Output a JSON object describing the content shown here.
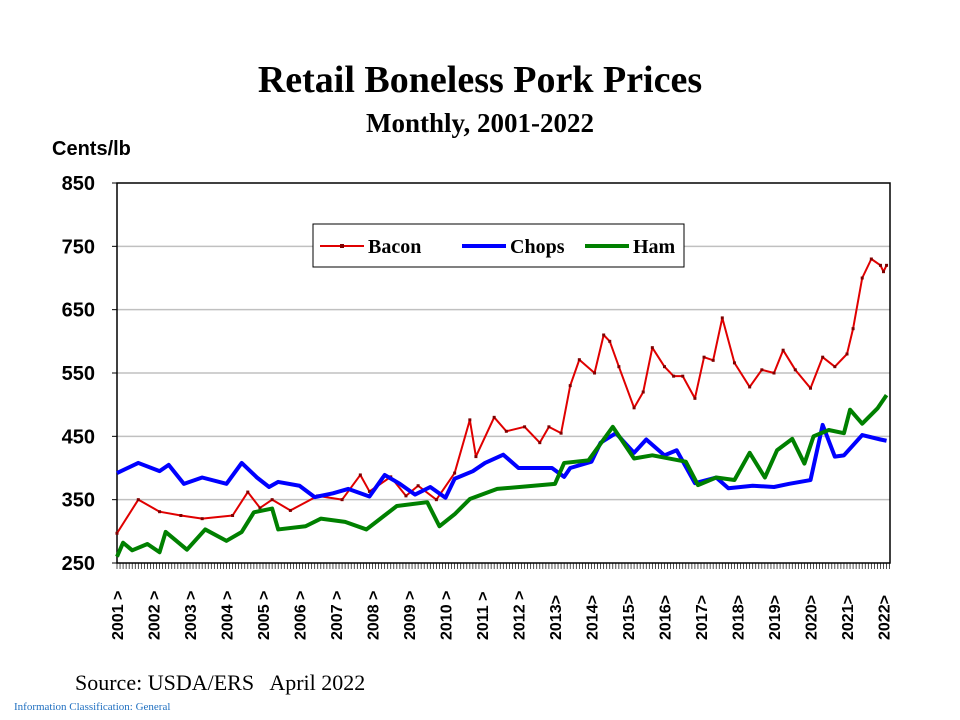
{
  "chart_data": {
    "type": "line",
    "title": "Retail Boneless Pork Prices",
    "subtitle": "Monthly, 2001-2022",
    "ylabel": "Cents/lb",
    "ylim": [
      250,
      850
    ],
    "yticks": [
      250,
      350,
      450,
      550,
      650,
      750,
      850
    ],
    "xlim": [
      "2001-01",
      "2022-03"
    ],
    "xtick_labels": [
      "2001 >",
      "2002 >",
      "2003 >",
      "2004 >",
      "2005 >",
      "2006 >",
      "2007 >",
      "2008 >",
      "2009 >",
      "2010 >",
      "2011 >",
      "2012 >",
      "2013>",
      "2014>",
      "2015>",
      "2016>",
      "2017>",
      "2018>",
      "2019>",
      "2020>",
      "2021>",
      "2022>"
    ],
    "grid": "horizontal",
    "legend_placement": "top-center",
    "series": [
      {
        "name": "Bacon",
        "color": "#e00000",
        "marker_color": "#800000",
        "points": [
          [
            "2001-01",
            297
          ],
          [
            "2001-08",
            350
          ],
          [
            "2002-03",
            331
          ],
          [
            "2002-10",
            325
          ],
          [
            "2003-05",
            320
          ],
          [
            "2004-03",
            325
          ],
          [
            "2004-08",
            362
          ],
          [
            "2004-12",
            337
          ],
          [
            "2005-04",
            350
          ],
          [
            "2005-10",
            333
          ],
          [
            "2006-07",
            356
          ],
          [
            "2007-03",
            350
          ],
          [
            "2007-09",
            389
          ],
          [
            "2007-12",
            363
          ],
          [
            "2008-07",
            386
          ],
          [
            "2008-12",
            356
          ],
          [
            "2009-04",
            372
          ],
          [
            "2009-10",
            350
          ],
          [
            "2010-04",
            392
          ],
          [
            "2010-09",
            476
          ],
          [
            "2010-11",
            418
          ],
          [
            "2011-05",
            480
          ],
          [
            "2011-09",
            458
          ],
          [
            "2012-03",
            465
          ],
          [
            "2012-08",
            440
          ],
          [
            "2012-11",
            465
          ],
          [
            "2013-03",
            455
          ],
          [
            "2013-06",
            530
          ],
          [
            "2013-09",
            571
          ],
          [
            "2014-02",
            550
          ],
          [
            "2014-05",
            610
          ],
          [
            "2014-07",
            600
          ],
          [
            "2014-10",
            560
          ],
          [
            "2015-03",
            495
          ],
          [
            "2015-06",
            520
          ],
          [
            "2015-09",
            590
          ],
          [
            "2016-01",
            560
          ],
          [
            "2016-04",
            545
          ],
          [
            "2016-07",
            545
          ],
          [
            "2016-11",
            510
          ],
          [
            "2017-02",
            575
          ],
          [
            "2017-05",
            570
          ],
          [
            "2017-08",
            637
          ],
          [
            "2017-12",
            566
          ],
          [
            "2018-05",
            528
          ],
          [
            "2018-09",
            555
          ],
          [
            "2019-01",
            550
          ],
          [
            "2019-04",
            586
          ],
          [
            "2019-08",
            555
          ],
          [
            "2020-01",
            526
          ],
          [
            "2020-05",
            575
          ],
          [
            "2020-09",
            560
          ],
          [
            "2021-01",
            580
          ],
          [
            "2021-03",
            620
          ],
          [
            "2021-06",
            700
          ],
          [
            "2021-09",
            730
          ],
          [
            "2021-12",
            720
          ],
          [
            "2022-01",
            710
          ],
          [
            "2022-02",
            720
          ]
        ]
      },
      {
        "name": "Chops",
        "color": "#0000ff",
        "points": [
          [
            "2001-01",
            392
          ],
          [
            "2001-08",
            408
          ],
          [
            "2002-03",
            395
          ],
          [
            "2002-06",
            405
          ],
          [
            "2002-11",
            375
          ],
          [
            "2003-05",
            385
          ],
          [
            "2004-01",
            375
          ],
          [
            "2004-06",
            408
          ],
          [
            "2004-11",
            385
          ],
          [
            "2005-03",
            370
          ],
          [
            "2005-06",
            378
          ],
          [
            "2006-01",
            372
          ],
          [
            "2006-06",
            354
          ],
          [
            "2006-12",
            360
          ],
          [
            "2007-05",
            367
          ],
          [
            "2007-12",
            355
          ],
          [
            "2008-05",
            389
          ],
          [
            "2008-10",
            375
          ],
          [
            "2009-03",
            358
          ],
          [
            "2009-08",
            370
          ],
          [
            "2010-01",
            353
          ],
          [
            "2010-04",
            383
          ],
          [
            "2010-10",
            395
          ],
          [
            "2011-02",
            408
          ],
          [
            "2011-08",
            421
          ],
          [
            "2012-01",
            400
          ],
          [
            "2012-06",
            400
          ],
          [
            "2012-12",
            400
          ],
          [
            "2013-04",
            386
          ],
          [
            "2013-06",
            400
          ],
          [
            "2014-01",
            410
          ],
          [
            "2014-04",
            440
          ],
          [
            "2014-09",
            455
          ],
          [
            "2015-03",
            424
          ],
          [
            "2015-07",
            445
          ],
          [
            "2016-01",
            420
          ],
          [
            "2016-05",
            428
          ],
          [
            "2016-11",
            376
          ],
          [
            "2017-06",
            385
          ],
          [
            "2017-10",
            368
          ],
          [
            "2018-06",
            372
          ],
          [
            "2019-01",
            370
          ],
          [
            "2019-06",
            375
          ],
          [
            "2020-01",
            381
          ],
          [
            "2020-05",
            468
          ],
          [
            "2020-09",
            418
          ],
          [
            "2020-12",
            420
          ],
          [
            "2021-06",
            452
          ],
          [
            "2021-12",
            445
          ],
          [
            "2022-02",
            443
          ]
        ]
      },
      {
        "name": "Ham",
        "color": "#008000",
        "points": [
          [
            "2001-01",
            260
          ],
          [
            "2001-03",
            282
          ],
          [
            "2001-06",
            270
          ],
          [
            "2001-11",
            280
          ],
          [
            "2002-03",
            267
          ],
          [
            "2002-05",
            299
          ],
          [
            "2002-12",
            271
          ],
          [
            "2003-06",
            303
          ],
          [
            "2004-01",
            285
          ],
          [
            "2004-06",
            299
          ],
          [
            "2004-10",
            330
          ],
          [
            "2005-04",
            336
          ],
          [
            "2005-06",
            303
          ],
          [
            "2006-03",
            308
          ],
          [
            "2006-08",
            320
          ],
          [
            "2007-04",
            315
          ],
          [
            "2007-11",
            303
          ],
          [
            "2008-09",
            340
          ],
          [
            "2009-07",
            346
          ],
          [
            "2009-11",
            308
          ],
          [
            "2010-04",
            327
          ],
          [
            "2010-09",
            351
          ],
          [
            "2011-06",
            367
          ],
          [
            "2012-06",
            372
          ],
          [
            "2013-01",
            375
          ],
          [
            "2013-04",
            408
          ],
          [
            "2013-12",
            412
          ],
          [
            "2014-08",
            465
          ],
          [
            "2015-03",
            415
          ],
          [
            "2015-09",
            420
          ],
          [
            "2016-08",
            410
          ],
          [
            "2016-12",
            373
          ],
          [
            "2017-06",
            385
          ],
          [
            "2017-12",
            381
          ],
          [
            "2018-05",
            424
          ],
          [
            "2018-10",
            385
          ],
          [
            "2019-02",
            428
          ],
          [
            "2019-07",
            446
          ],
          [
            "2019-11",
            407
          ],
          [
            "2020-02",
            450
          ],
          [
            "2020-07",
            460
          ],
          [
            "2020-12",
            455
          ],
          [
            "2021-02",
            492
          ],
          [
            "2021-06",
            470
          ],
          [
            "2021-11",
            494
          ],
          [
            "2022-02",
            515
          ]
        ]
      }
    ]
  },
  "footer": {
    "source": "Source: USDA/ERS   April 2022",
    "classification": "Information Classification: General"
  }
}
